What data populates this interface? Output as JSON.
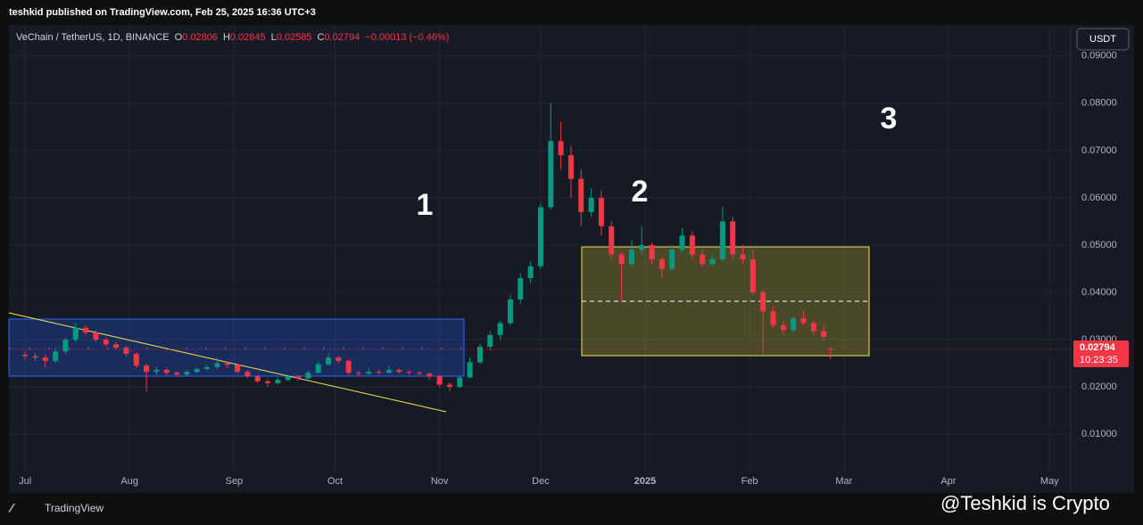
{
  "header": {
    "publisher": "teshkid published on TradingView.com, Feb 25, 2025 16:36 UTC+3"
  },
  "chart_data": {
    "type": "candlestick",
    "symbol": "VeChain / TetherUS, 1D, BINANCE",
    "legend_values": [
      {
        "label": "O",
        "value": 0.02806
      },
      {
        "label": "H",
        "value": 0.02845
      },
      {
        "label": "L",
        "value": 0.02585
      },
      {
        "label": "C",
        "value": 0.02794
      }
    ],
    "change": "−0.00013 (−0.46%)",
    "currency": "USDT",
    "x": [
      0,
      3,
      6,
      9,
      12,
      15,
      18,
      21,
      24,
      27,
      30,
      33,
      36,
      39,
      42,
      45,
      48,
      51,
      54,
      57,
      60,
      63,
      66,
      69,
      72,
      75,
      78,
      81,
      84,
      87,
      90,
      93,
      96,
      99,
      102,
      105,
      108,
      111,
      114,
      117,
      120,
      123,
      126,
      129,
      132,
      135,
      138,
      141,
      144,
      147,
      150,
      153,
      156,
      159,
      162,
      165,
      168,
      171,
      174,
      177,
      180,
      183,
      186,
      189,
      192,
      195,
      198,
      201,
      204,
      207,
      210,
      213,
      216,
      219,
      222,
      225,
      228,
      231,
      234,
      237,
      239
    ],
    "open": [
      0.0268,
      0.0265,
      0.0262,
      0.0255,
      0.0275,
      0.03,
      0.0325,
      0.0315,
      0.03,
      0.029,
      0.0283,
      0.027,
      0.0245,
      0.0232,
      0.0236,
      0.023,
      0.0226,
      0.0232,
      0.0238,
      0.0242,
      0.025,
      0.0247,
      0.0232,
      0.0222,
      0.0212,
      0.0208,
      0.0215,
      0.0222,
      0.0218,
      0.023,
      0.0248,
      0.0262,
      0.0255,
      0.023,
      0.0228,
      0.0232,
      0.023,
      0.0236,
      0.0232,
      0.023,
      0.0228,
      0.0222,
      0.0205,
      0.02,
      0.022,
      0.0252,
      0.0285,
      0.031,
      0.0335,
      0.0385,
      0.043,
      0.0455,
      0.058,
      0.072,
      0.069,
      0.064,
      0.057,
      0.06,
      0.054,
      0.048,
      0.046,
      0.049,
      0.05,
      0.047,
      0.045,
      0.049,
      0.052,
      0.048,
      0.046,
      0.047,
      0.055,
      0.048,
      0.047,
      0.04,
      0.036,
      0.033,
      0.032,
      0.0345,
      0.0335,
      0.0318,
      0.02806
    ],
    "high": [
      0.0275,
      0.0272,
      0.0268,
      0.0282,
      0.0305,
      0.0335,
      0.033,
      0.032,
      0.0305,
      0.0295,
      0.0287,
      0.0273,
      0.025,
      0.0242,
      0.024,
      0.0235,
      0.0236,
      0.0242,
      0.0246,
      0.0262,
      0.0255,
      0.025,
      0.0236,
      0.0226,
      0.0215,
      0.022,
      0.0226,
      0.0225,
      0.0236,
      0.0254,
      0.027,
      0.0266,
      0.0258,
      0.0235,
      0.024,
      0.0236,
      0.0245,
      0.024,
      0.0236,
      0.0234,
      0.0231,
      0.0225,
      0.021,
      0.0225,
      0.0262,
      0.0292,
      0.0318,
      0.034,
      0.0395,
      0.044,
      0.0465,
      0.059,
      0.08,
      0.076,
      0.071,
      0.066,
      0.062,
      0.0615,
      0.055,
      0.0485,
      0.051,
      0.054,
      0.0505,
      0.0475,
      0.05,
      0.0535,
      0.053,
      0.049,
      0.048,
      0.058,
      0.056,
      0.05,
      0.049,
      0.0405,
      0.037,
      0.034,
      0.035,
      0.036,
      0.034,
      0.033,
      0.02845
    ],
    "low": [
      0.0258,
      0.0255,
      0.024,
      0.025,
      0.027,
      0.0295,
      0.0308,
      0.0295,
      0.0285,
      0.0278,
      0.0265,
      0.024,
      0.019,
      0.0226,
      0.0225,
      0.0222,
      0.0222,
      0.0228,
      0.0233,
      0.0238,
      0.024,
      0.0228,
      0.0218,
      0.0208,
      0.02,
      0.0205,
      0.0212,
      0.0212,
      0.0215,
      0.0228,
      0.0245,
      0.025,
      0.0225,
      0.0222,
      0.0225,
      0.0226,
      0.0228,
      0.0228,
      0.0226,
      0.0224,
      0.0215,
      0.02,
      0.0192,
      0.0198,
      0.0218,
      0.0248,
      0.0278,
      0.03,
      0.033,
      0.0375,
      0.042,
      0.045,
      0.0575,
      0.066,
      0.06,
      0.054,
      0.056,
      0.052,
      0.047,
      0.038,
      0.0455,
      0.048,
      0.046,
      0.043,
      0.0445,
      0.0485,
      0.047,
      0.0455,
      0.0455,
      0.0465,
      0.047,
      0.046,
      0.0395,
      0.027,
      0.0325,
      0.031,
      0.0315,
      0.033,
      0.031,
      0.03,
      0.02585
    ],
    "close": [
      0.0265,
      0.0262,
      0.0255,
      0.0275,
      0.03,
      0.0325,
      0.0315,
      0.03,
      0.029,
      0.0283,
      0.027,
      0.0245,
      0.0232,
      0.0236,
      0.023,
      0.0226,
      0.0232,
      0.0238,
      0.0242,
      0.025,
      0.0247,
      0.0232,
      0.0222,
      0.0212,
      0.0208,
      0.0215,
      0.0222,
      0.0218,
      0.023,
      0.0248,
      0.0262,
      0.0255,
      0.023,
      0.0228,
      0.0232,
      0.023,
      0.0236,
      0.0232,
      0.023,
      0.0228,
      0.0222,
      0.0205,
      0.02,
      0.022,
      0.0252,
      0.0285,
      0.031,
      0.0335,
      0.0385,
      0.043,
      0.0455,
      0.058,
      0.072,
      0.069,
      0.064,
      0.057,
      0.06,
      0.054,
      0.048,
      0.046,
      0.049,
      0.05,
      0.047,
      0.045,
      0.049,
      0.052,
      0.048,
      0.046,
      0.047,
      0.055,
      0.048,
      0.047,
      0.04,
      0.036,
      0.033,
      0.032,
      0.0345,
      0.0335,
      0.0318,
      0.0306,
      0.02794
    ],
    "xlim": [
      -4.8,
      310.3
    ],
    "xticks": [
      {
        "value": 0,
        "label": "Jul"
      },
      {
        "value": 31,
        "label": "Aug"
      },
      {
        "value": 62,
        "label": "Sep"
      },
      {
        "value": 92,
        "label": "Oct"
      },
      {
        "value": 123,
        "label": "Nov"
      },
      {
        "value": 153,
        "label": "Dec"
      },
      {
        "value": 184,
        "label": "2025"
      },
      {
        "value": 215,
        "label": "Feb"
      },
      {
        "value": 243,
        "label": "Mar"
      },
      {
        "value": 274,
        "label": "Apr"
      },
      {
        "value": 304,
        "label": "May"
      }
    ],
    "ylim": [
      0.0023,
      0.0909
    ],
    "yticks": [
      {
        "value": 0.01,
        "label": "0.01000"
      },
      {
        "value": 0.02,
        "label": "0.02000"
      },
      {
        "value": 0.03,
        "label": "0.03000"
      },
      {
        "value": 0.04,
        "label": "0.04000"
      },
      {
        "value": 0.05,
        "label": "0.05000"
      },
      {
        "value": 0.06,
        "label": "0.06000"
      },
      {
        "value": 0.07,
        "label": "0.07000"
      },
      {
        "value": 0.08,
        "label": "0.08000"
      },
      {
        "value": 0.09,
        "label": "0.09000"
      }
    ],
    "last_price": 0.02794,
    "countdown": "10:23:35",
    "grid": true,
    "up_color": "#089981",
    "down_color": "#f23645",
    "annotations": [
      "1",
      "2",
      "3"
    ]
  },
  "watermark": "@Teshkid is Crypto",
  "footer": {
    "logo": "TradingView"
  }
}
